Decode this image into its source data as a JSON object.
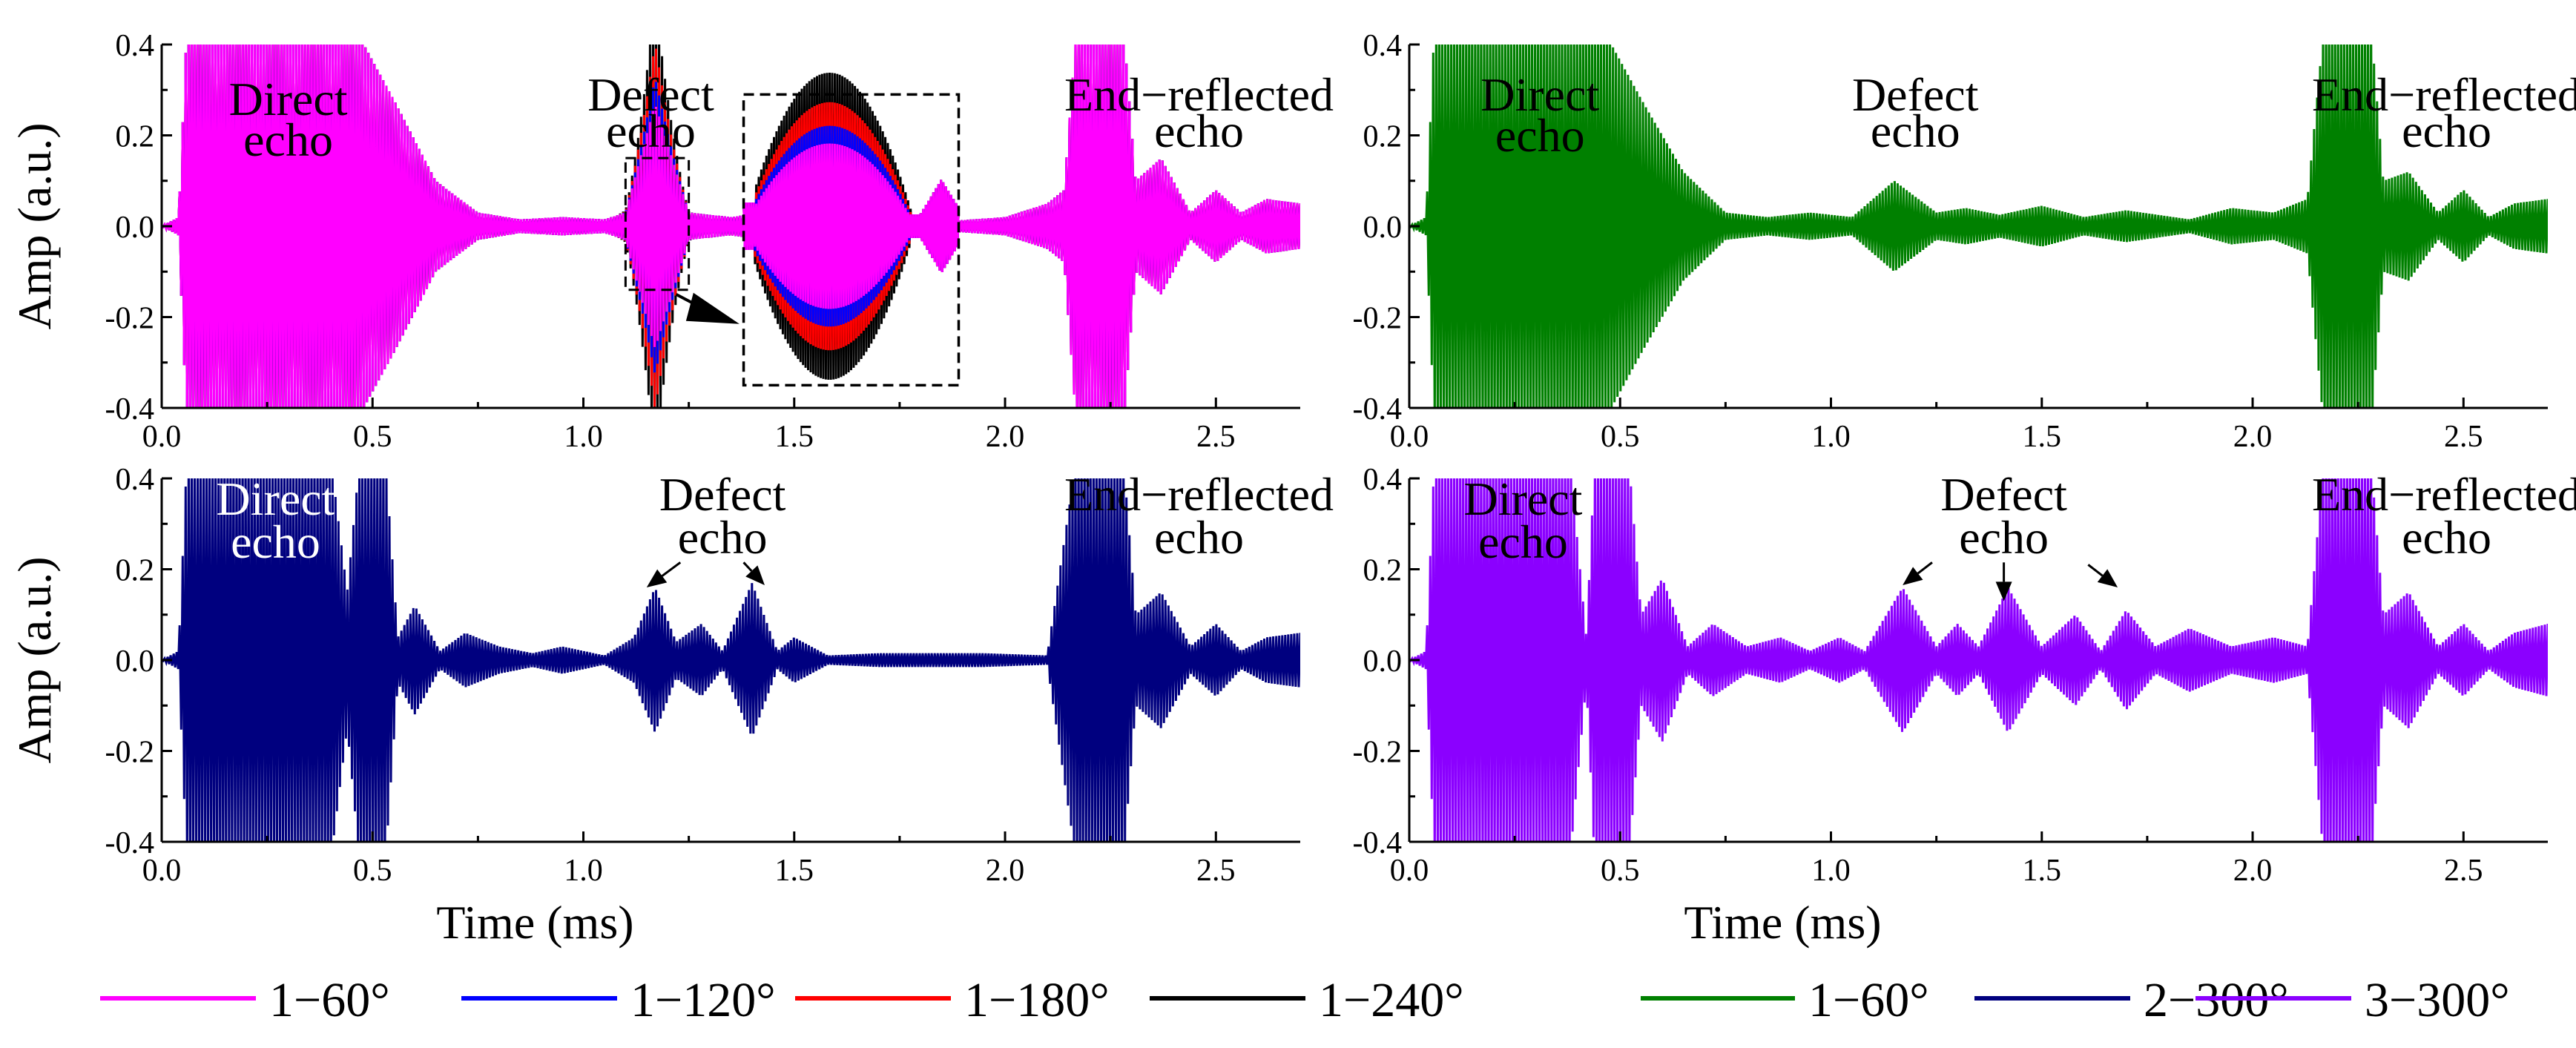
{
  "chart_data": [
    {
      "panel": "top-left",
      "type": "line",
      "xlabel": "",
      "ylabel": "Amp (a.u.)",
      "xlim": [
        0,
        2.7
      ],
      "ylim": [
        -0.4,
        0.4
      ],
      "xticks": [
        "0.0",
        "0.5",
        "1.0",
        "1.5",
        "2.0",
        "2.5"
      ],
      "yticks": [
        "-0.4",
        "-0.2",
        "0.0",
        "0.2",
        "0.4"
      ],
      "series": [
        {
          "name": "1−60°",
          "color": "#ff00ff"
        },
        {
          "name": "1−120°",
          "color": "#0000ff"
        },
        {
          "name": "1−180°",
          "color": "#ff0000"
        },
        {
          "name": "1−240°",
          "color": "#000000"
        }
      ],
      "envelope": [
        [
          0.0,
          0.0
        ],
        [
          0.04,
          0.02
        ],
        [
          0.06,
          0.45
        ],
        [
          0.45,
          0.45
        ],
        [
          0.55,
          0.28
        ],
        [
          0.65,
          0.1
        ],
        [
          0.75,
          0.03
        ],
        [
          0.85,
          0.015
        ],
        [
          0.95,
          0.02
        ],
        [
          1.05,
          0.015
        ],
        [
          1.1,
          0.03
        ],
        [
          1.17,
          0.27
        ],
        [
          1.25,
          0.03
        ],
        [
          1.35,
          0.02
        ],
        [
          1.5,
          0.04
        ],
        [
          1.6,
          0.05
        ],
        [
          1.75,
          0.03
        ],
        [
          1.85,
          0.01
        ],
        [
          2.0,
          0.02
        ],
        [
          2.1,
          0.05
        ],
        [
          2.14,
          0.08
        ],
        [
          2.17,
          0.45
        ],
        [
          2.28,
          0.45
        ],
        [
          2.31,
          0.1
        ],
        [
          2.37,
          0.15
        ],
        [
          2.44,
          0.03
        ],
        [
          2.5,
          0.08
        ],
        [
          2.56,
          0.03
        ],
        [
          2.62,
          0.06
        ],
        [
          2.7,
          0.05
        ]
      ],
      "defect_amplitudes": {
        "1−60°": 0.14,
        "1−120°": 0.17,
        "1−180°": 0.21,
        "1−240°": 0.26
      },
      "annotations": [
        "Direct\necho",
        "Defect\necho",
        "End−reflected\necho"
      ]
    },
    {
      "panel": "top-right",
      "type": "line",
      "xlabel": "",
      "ylabel": "",
      "xlim": [
        0,
        2.7
      ],
      "ylim": [
        -0.4,
        0.4
      ],
      "xticks": [
        "0.0",
        "0.5",
        "1.0",
        "1.5",
        "2.0",
        "2.5"
      ],
      "yticks": [
        "-0.4",
        "-0.2",
        "0.0",
        "0.2",
        "0.4"
      ],
      "series": [
        {
          "name": "1−60°",
          "color": "#008000"
        }
      ],
      "envelope": [
        [
          0.0,
          0.0
        ],
        [
          0.04,
          0.02
        ],
        [
          0.06,
          0.45
        ],
        [
          0.45,
          0.45
        ],
        [
          0.55,
          0.28
        ],
        [
          0.65,
          0.12
        ],
        [
          0.75,
          0.03
        ],
        [
          0.85,
          0.02
        ],
        [
          0.95,
          0.03
        ],
        [
          1.05,
          0.02
        ],
        [
          1.15,
          0.1
        ],
        [
          1.25,
          0.03
        ],
        [
          1.32,
          0.04
        ],
        [
          1.4,
          0.025
        ],
        [
          1.5,
          0.045
        ],
        [
          1.6,
          0.02
        ],
        [
          1.7,
          0.035
        ],
        [
          1.85,
          0.015
        ],
        [
          1.95,
          0.04
        ],
        [
          2.05,
          0.03
        ],
        [
          2.13,
          0.06
        ],
        [
          2.17,
          0.45
        ],
        [
          2.28,
          0.45
        ],
        [
          2.31,
          0.1
        ],
        [
          2.37,
          0.12
        ],
        [
          2.44,
          0.03
        ],
        [
          2.5,
          0.08
        ],
        [
          2.56,
          0.02
        ],
        [
          2.62,
          0.05
        ],
        [
          2.7,
          0.06
        ]
      ],
      "annotations": [
        "Direct\necho",
        "Defect\necho",
        "End−reflected\necho"
      ]
    },
    {
      "panel": "bottom-left",
      "type": "line",
      "xlabel": "Time (ms)",
      "ylabel": "Amp (a.u.)",
      "xlim": [
        0,
        2.7
      ],
      "ylim": [
        -0.4,
        0.4
      ],
      "xticks": [
        "0.0",
        "0.5",
        "1.0",
        "1.5",
        "2.0",
        "2.5"
      ],
      "yticks": [
        "-0.4",
        "-0.2",
        "0.0",
        "0.2",
        "0.4"
      ],
      "series": [
        {
          "name": "2−300°",
          "color": "#00007f"
        }
      ],
      "envelope": [
        [
          0.0,
          0.0
        ],
        [
          0.04,
          0.02
        ],
        [
          0.06,
          0.45
        ],
        [
          0.4,
          0.45
        ],
        [
          0.44,
          0.15
        ],
        [
          0.47,
          0.45
        ],
        [
          0.53,
          0.45
        ],
        [
          0.56,
          0.05
        ],
        [
          0.6,
          0.12
        ],
        [
          0.66,
          0.02
        ],
        [
          0.72,
          0.06
        ],
        [
          0.8,
          0.03
        ],
        [
          0.88,
          0.015
        ],
        [
          0.95,
          0.03
        ],
        [
          1.05,
          0.01
        ],
        [
          1.12,
          0.05
        ],
        [
          1.17,
          0.16
        ],
        [
          1.22,
          0.04
        ],
        [
          1.28,
          0.08
        ],
        [
          1.33,
          0.02
        ],
        [
          1.4,
          0.17
        ],
        [
          1.46,
          0.02
        ],
        [
          1.5,
          0.05
        ],
        [
          1.58,
          0.01
        ],
        [
          1.7,
          0.015
        ],
        [
          1.95,
          0.015
        ],
        [
          2.1,
          0.01
        ],
        [
          2.17,
          0.45
        ],
        [
          2.28,
          0.45
        ],
        [
          2.31,
          0.1
        ],
        [
          2.37,
          0.15
        ],
        [
          2.44,
          0.03
        ],
        [
          2.5,
          0.08
        ],
        [
          2.56,
          0.02
        ],
        [
          2.62,
          0.05
        ],
        [
          2.7,
          0.06
        ]
      ],
      "annotations": [
        "Direct\necho",
        "Defect\necho",
        "End−reflected\necho"
      ]
    },
    {
      "panel": "bottom-right",
      "type": "line",
      "xlabel": "Time (ms)",
      "ylabel": "",
      "xlim": [
        0,
        2.7
      ],
      "ylim": [
        -0.4,
        0.4
      ],
      "xticks": [
        "0.0",
        "0.5",
        "1.0",
        "1.5",
        "2.0",
        "2.5"
      ],
      "yticks": [
        "-0.4",
        "-0.2",
        "0.0",
        "0.2",
        "0.4"
      ],
      "series": [
        {
          "name": "3−300°",
          "color": "#8b00ff"
        }
      ],
      "envelope": [
        [
          0.0,
          0.0
        ],
        [
          0.04,
          0.02
        ],
        [
          0.06,
          0.45
        ],
        [
          0.38,
          0.45
        ],
        [
          0.42,
          0.05
        ],
        [
          0.44,
          0.45
        ],
        [
          0.52,
          0.45
        ],
        [
          0.55,
          0.1
        ],
        [
          0.6,
          0.18
        ],
        [
          0.66,
          0.03
        ],
        [
          0.72,
          0.08
        ],
        [
          0.8,
          0.03
        ],
        [
          0.88,
          0.05
        ],
        [
          0.95,
          0.02
        ],
        [
          1.02,
          0.05
        ],
        [
          1.08,
          0.02
        ],
        [
          1.17,
          0.16
        ],
        [
          1.25,
          0.03
        ],
        [
          1.3,
          0.08
        ],
        [
          1.35,
          0.03
        ],
        [
          1.42,
          0.16
        ],
        [
          1.5,
          0.03
        ],
        [
          1.58,
          0.1
        ],
        [
          1.64,
          0.02
        ],
        [
          1.7,
          0.11
        ],
        [
          1.77,
          0.03
        ],
        [
          1.85,
          0.07
        ],
        [
          1.95,
          0.03
        ],
        [
          2.05,
          0.05
        ],
        [
          2.13,
          0.03
        ],
        [
          2.17,
          0.45
        ],
        [
          2.28,
          0.45
        ],
        [
          2.31,
          0.1
        ],
        [
          2.37,
          0.15
        ],
        [
          2.44,
          0.03
        ],
        [
          2.5,
          0.08
        ],
        [
          2.56,
          0.02
        ],
        [
          2.62,
          0.06
        ],
        [
          2.7,
          0.08
        ]
      ],
      "annotations": [
        "Direct\necho",
        "Defect\necho",
        "End−reflected\necho"
      ]
    }
  ],
  "legend": [
    {
      "label": "1−60°",
      "color": "#ff00ff"
    },
    {
      "label": "1−120°",
      "color": "#0000ff"
    },
    {
      "label": "1−180°",
      "color": "#ff0000"
    },
    {
      "label": "1−240°",
      "color": "#000000"
    },
    {
      "label": "1−60°",
      "color": "#008000"
    },
    {
      "label": "2−300°",
      "color": "#00007f"
    },
    {
      "label": "3−300°",
      "color": "#8b00ff"
    }
  ],
  "text": {
    "ylabel": "Amp (a.u.)",
    "xlabel": "Time (ms)",
    "direct_1": "Direct",
    "direct_2": "echo",
    "defect_1": "Defect",
    "defect_2": "echo",
    "end_1": "End−reflected",
    "end_2": "echo"
  }
}
